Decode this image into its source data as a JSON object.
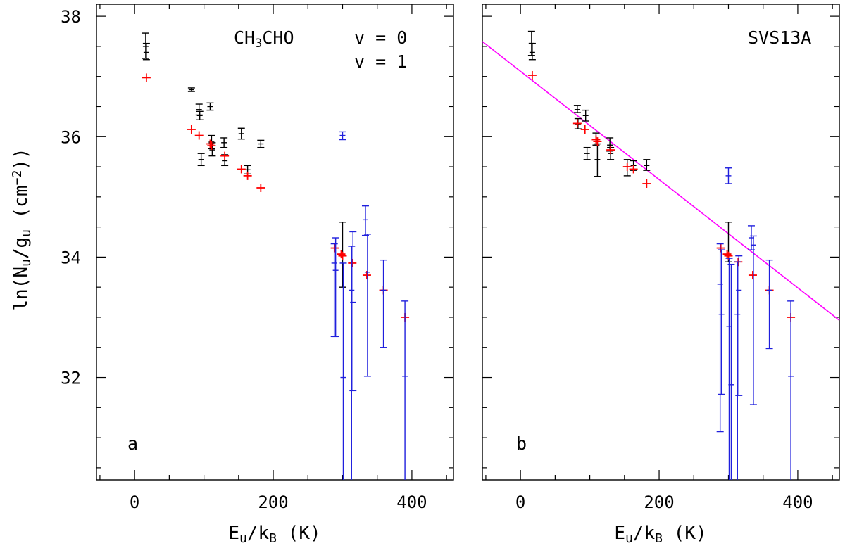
{
  "colors": {
    "v0": "#000000",
    "model": "#ff0000",
    "v1": "#1f1fdd",
    "fit": "#ff00ff"
  },
  "axes": {
    "xlim": [
      -55,
      460
    ],
    "ylim": [
      30.3,
      38.2
    ],
    "xticks_major": [
      0,
      200,
      400
    ],
    "xticks_minor_step": 50,
    "yticks_major": [
      32,
      34,
      36,
      38
    ],
    "yticks_minor_step": 0.5,
    "xlabel": {
      "main": "E",
      "sub1": "u",
      "mid": "/k",
      "sub2": "B",
      "end": " (K)"
    },
    "ylabel": {
      "pre": "ln(N",
      "sub1": "u",
      "mid": "/g",
      "sub2": "u",
      "post": " (cm",
      "sup": "−2",
      "end": "))"
    }
  },
  "panels": [
    {
      "letter": "a",
      "species": {
        "pre": "CH",
        "sub": "3",
        "post": "CHO"
      },
      "legend": {
        "v0": "v = 0",
        "v1": "v = 1"
      },
      "black": [
        {
          "x": 16,
          "y": 37.5,
          "lo": 37.3,
          "hi": 37.72
        },
        {
          "x": 17,
          "y": 37.4,
          "lo": 37.28,
          "hi": 37.55
        },
        {
          "x": 82,
          "y": 36.78,
          "lo": 36.75,
          "hi": 36.81
        },
        {
          "x": 93,
          "y": 36.45,
          "lo": 36.36,
          "hi": 36.54
        },
        {
          "x": 94,
          "y": 36.35,
          "lo": 36.28,
          "hi": 36.42
        },
        {
          "x": 96,
          "y": 35.62,
          "lo": 35.52,
          "hi": 35.72
        },
        {
          "x": 109,
          "y": 36.5,
          "lo": 36.44,
          "hi": 36.56
        },
        {
          "x": 111,
          "y": 35.92,
          "lo": 35.8,
          "hi": 36.02
        },
        {
          "x": 112,
          "y": 35.78,
          "lo": 35.68,
          "hi": 35.9
        },
        {
          "x": 129,
          "y": 35.9,
          "lo": 35.82,
          "hi": 35.98
        },
        {
          "x": 130,
          "y": 35.6,
          "lo": 35.52,
          "hi": 35.7
        },
        {
          "x": 154,
          "y": 36.05,
          "lo": 35.96,
          "hi": 36.14
        },
        {
          "x": 163,
          "y": 35.45,
          "lo": 35.38,
          "hi": 35.52
        },
        {
          "x": 182,
          "y": 35.88,
          "lo": 35.82,
          "hi": 35.94
        },
        {
          "x": 300,
          "y": 34.05,
          "lo": 33.5,
          "hi": 34.58
        }
      ],
      "red": [
        {
          "x": 17,
          "y": 36.98
        },
        {
          "x": 82,
          "y": 36.12
        },
        {
          "x": 93,
          "y": 36.02
        },
        {
          "x": 109,
          "y": 35.88
        },
        {
          "x": 111,
          "y": 35.85
        },
        {
          "x": 130,
          "y": 35.68
        },
        {
          "x": 154,
          "y": 35.46
        },
        {
          "x": 163,
          "y": 35.35
        },
        {
          "x": 182,
          "y": 35.15
        },
        {
          "x": 289,
          "y": 34.15
        },
        {
          "x": 298,
          "y": 34.05
        },
        {
          "x": 300,
          "y": 34.02
        },
        {
          "x": 314,
          "y": 33.9
        },
        {
          "x": 335,
          "y": 33.7
        },
        {
          "x": 359,
          "y": 33.45
        },
        {
          "x": 390,
          "y": 33.0
        }
      ],
      "blue": [
        {
          "x": 288,
          "y": 33.9,
          "lo": 32.68,
          "hi": 34.22
        },
        {
          "x": 290,
          "y": 33.78,
          "lo": 32.68,
          "hi": 34.32
        },
        {
          "x": 300,
          "y": 36.02,
          "lo": 35.95,
          "hi": 36.08
        },
        {
          "x": 301,
          "y": 32.0,
          "lo": 30.2,
          "hi": 33.9
        },
        {
          "x": 313,
          "y": 33.45,
          "lo": 30.2,
          "hi": 34.18
        },
        {
          "x": 315,
          "y": 33.25,
          "lo": 31.78,
          "hi": 34.42
        },
        {
          "x": 333,
          "y": 34.62,
          "lo": 34.36,
          "hi": 34.85
        },
        {
          "x": 336,
          "y": 33.75,
          "lo": 32.02,
          "hi": 34.38
        },
        {
          "x": 359,
          "y": 33.45,
          "lo": 32.5,
          "hi": 33.95
        },
        {
          "x": 390,
          "y": 32.02,
          "lo": 30.2,
          "hi": 33.27
        }
      ]
    },
    {
      "letter": "b",
      "species": {
        "label": "SVS13A"
      },
      "fit": {
        "y_at_xmin": 37.58,
        "y_at_xmax": 32.95
      },
      "black": [
        {
          "x": 16,
          "y": 37.55,
          "lo": 37.35,
          "hi": 37.75
        },
        {
          "x": 17,
          "y": 37.4,
          "lo": 37.28,
          "hi": 37.55
        },
        {
          "x": 82,
          "y": 36.45,
          "lo": 36.4,
          "hi": 36.52
        },
        {
          "x": 83,
          "y": 36.2,
          "lo": 36.13,
          "hi": 36.3
        },
        {
          "x": 94,
          "y": 36.35,
          "lo": 36.26,
          "hi": 36.44
        },
        {
          "x": 96,
          "y": 35.72,
          "lo": 35.62,
          "hi": 35.82
        },
        {
          "x": 109,
          "y": 35.95,
          "lo": 35.86,
          "hi": 36.06
        },
        {
          "x": 111,
          "y": 35.62,
          "lo": 35.34,
          "hi": 35.88
        },
        {
          "x": 129,
          "y": 35.86,
          "lo": 35.76,
          "hi": 35.98
        },
        {
          "x": 130,
          "y": 35.72,
          "lo": 35.62,
          "hi": 35.82
        },
        {
          "x": 154,
          "y": 35.5,
          "lo": 35.35,
          "hi": 35.62
        },
        {
          "x": 163,
          "y": 35.52,
          "lo": 35.44,
          "hi": 35.6
        },
        {
          "x": 182,
          "y": 35.52,
          "lo": 35.44,
          "hi": 35.62
        },
        {
          "x": 300,
          "y": 34.05,
          "lo": 33.92,
          "hi": 34.58
        }
      ],
      "red": [
        {
          "x": 17,
          "y": 37.02
        },
        {
          "x": 82,
          "y": 36.22
        },
        {
          "x": 93,
          "y": 36.12
        },
        {
          "x": 109,
          "y": 35.95
        },
        {
          "x": 111,
          "y": 35.92
        },
        {
          "x": 130,
          "y": 35.78
        },
        {
          "x": 154,
          "y": 35.5
        },
        {
          "x": 163,
          "y": 35.46
        },
        {
          "x": 182,
          "y": 35.22
        },
        {
          "x": 289,
          "y": 34.15
        },
        {
          "x": 298,
          "y": 34.05
        },
        {
          "x": 300,
          "y": 34.02
        },
        {
          "x": 314,
          "y": 33.92
        },
        {
          "x": 335,
          "y": 33.7
        },
        {
          "x": 359,
          "y": 33.45
        },
        {
          "x": 390,
          "y": 33.0
        }
      ],
      "blue": [
        {
          "x": 288,
          "y": 33.55,
          "lo": 31.1,
          "hi": 34.22
        },
        {
          "x": 290,
          "y": 33.05,
          "lo": 31.72,
          "hi": 34.12
        },
        {
          "x": 300,
          "y": 35.35,
          "lo": 35.22,
          "hi": 35.48
        },
        {
          "x": 301,
          "y": 32.85,
          "lo": 30.2,
          "hi": 33.98
        },
        {
          "x": 304,
          "y": 31.88,
          "lo": 30.2,
          "hi": 33.88
        },
        {
          "x": 313,
          "y": 33.05,
          "lo": 30.2,
          "hi": 33.92
        },
        {
          "x": 315,
          "y": 33.45,
          "lo": 31.7,
          "hi": 34.02
        },
        {
          "x": 333,
          "y": 34.32,
          "lo": 34.12,
          "hi": 34.52
        },
        {
          "x": 336,
          "y": 34.2,
          "lo": 31.55,
          "hi": 34.35
        },
        {
          "x": 359,
          "y": 33.45,
          "lo": 32.48,
          "hi": 33.95
        },
        {
          "x": 390,
          "y": 32.02,
          "lo": 30.2,
          "hi": 33.27
        }
      ]
    }
  ]
}
